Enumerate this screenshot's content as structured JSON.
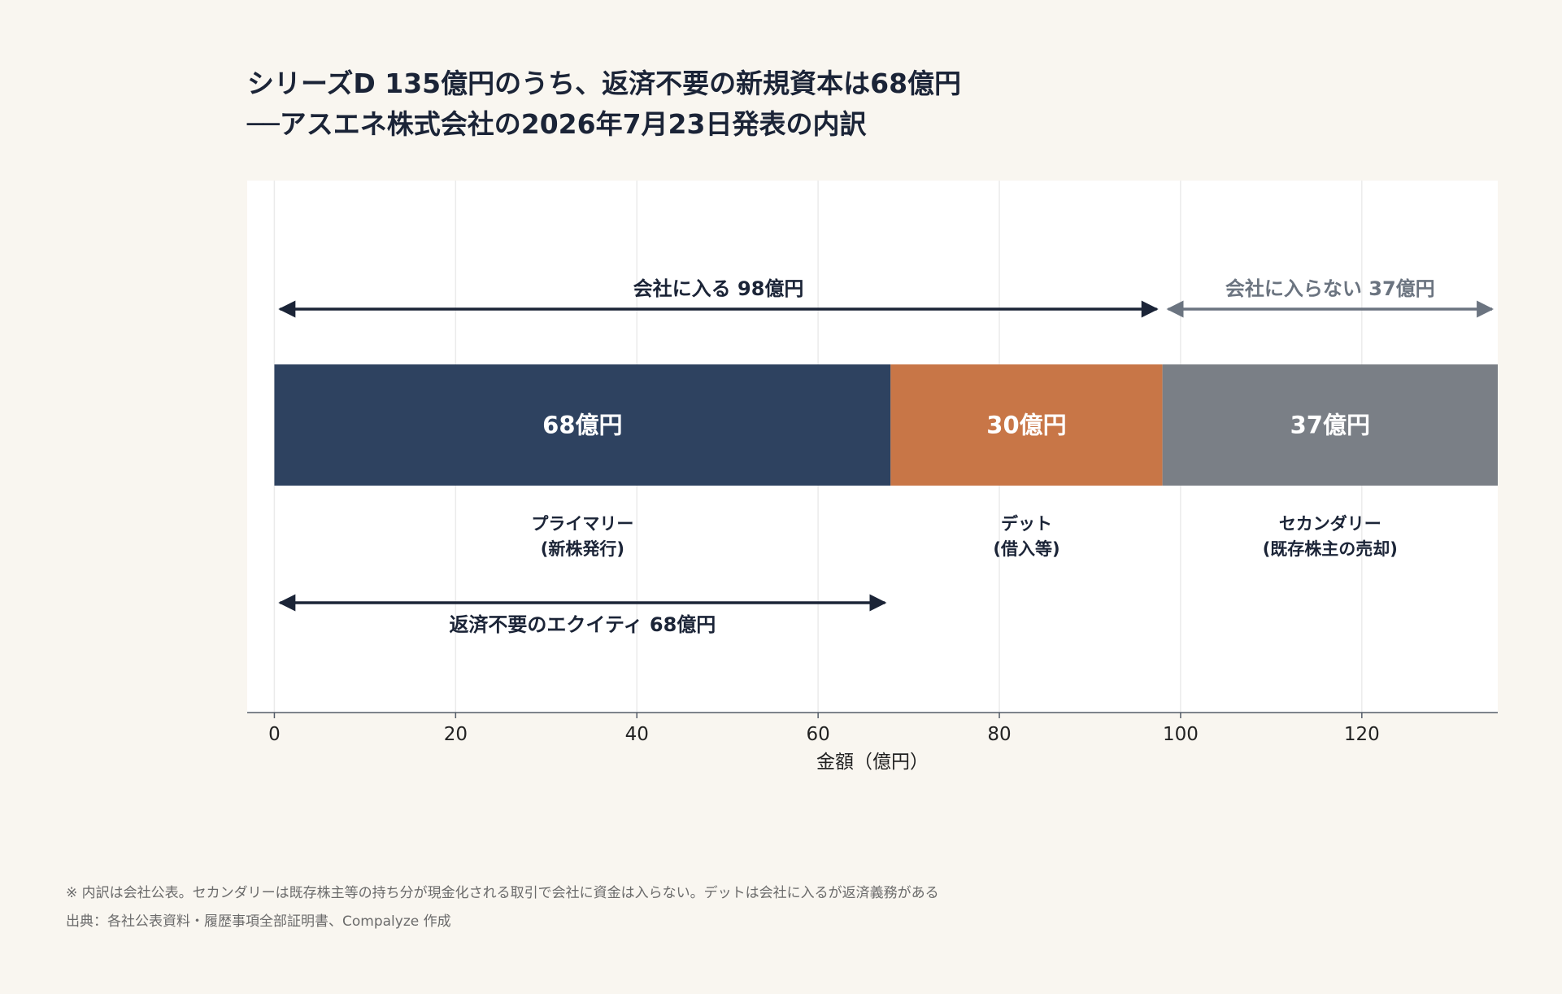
{
  "title_line1": "シリーズD 135億円のうち、返済不要の新規資本は68億円",
  "title_line2": "──アスエネ株式会社の2026年7月23日発表の内訳",
  "footnote": "※ 内訳は会社公表。セカンダリーは既存株主等の持ち分が現金化される取引で会社に資金は入らない。デットは会社に入るが返済義務がある",
  "source": "出典：各社公表資料・履歴事項全部証明書、Compalyze 作成",
  "colors": {
    "primary": "#2e4260",
    "debt": "#c87647",
    "secondary": "#7a7f86",
    "dark_arrow": "#1b2437",
    "gray_arrow": "#6b7480",
    "background": "#f9f6f0",
    "plot_bg": "#ffffff"
  },
  "chart_data": {
    "type": "bar",
    "orientation": "horizontal-stacked",
    "xlabel": "金額（億円）",
    "xlim": [
      -3,
      135
    ],
    "xticks": [
      0,
      20,
      40,
      60,
      80,
      100,
      120
    ],
    "grid": true,
    "segments": [
      {
        "name": "プライマリー\n(新株発行)",
        "label_line1": "プライマリー",
        "label_line2": "(新株発行)",
        "start": 0,
        "value": 68,
        "value_label": "68億円",
        "color": "#2e4260"
      },
      {
        "name": "デット\n(借入等)",
        "label_line1": "デット",
        "label_line2": "(借入等)",
        "start": 68,
        "value": 30,
        "value_label": "30億円",
        "color": "#c87647"
      },
      {
        "name": "セカンダリー\n(既存株主の売却)",
        "label_line1": "セカンダリー",
        "label_line2": "(既存株主の売却)",
        "start": 98,
        "value": 37,
        "value_label": "37億円",
        "color": "#7a7f86"
      }
    ],
    "annotations": [
      {
        "text": "会社に入る 98億円",
        "from": 0,
        "to": 98,
        "position": "above",
        "color": "#1b2437"
      },
      {
        "text": "会社に入らない 37億円",
        "from": 98,
        "to": 135,
        "position": "above",
        "color": "#6b7480"
      },
      {
        "text": "返済不要のエクイティ 68億円",
        "from": 0,
        "to": 68,
        "position": "below",
        "color": "#1b2437"
      }
    ]
  }
}
